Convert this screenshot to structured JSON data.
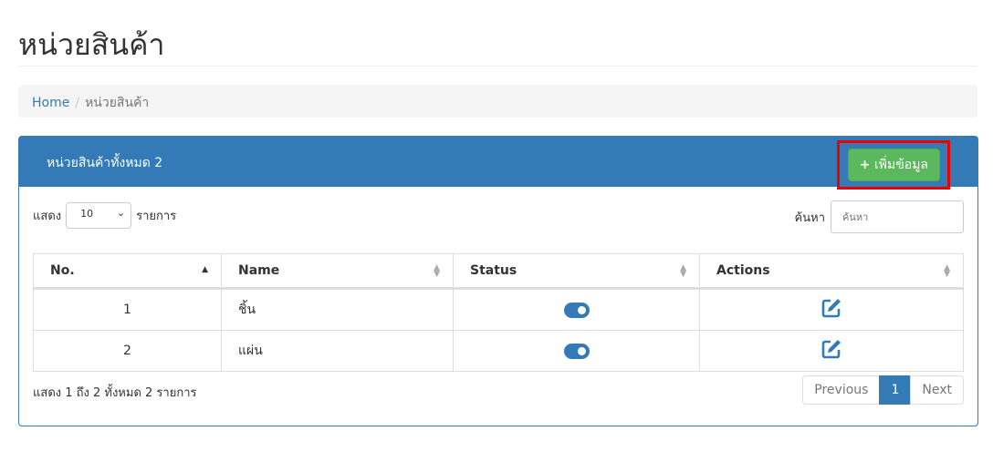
{
  "page": {
    "title": "หน่วยสินค้า"
  },
  "breadcrumb": {
    "home": "Home",
    "current": "หน่วยสินค้า"
  },
  "panel": {
    "heading": "หน่วยสินค้าทั้งหมด 2",
    "add_button": "เพิ่มข้อมูล",
    "add_icon": "plus-icon",
    "highlight_color": "#e00000",
    "accent": "#337ab7"
  },
  "length": {
    "prefix": "แสดง",
    "value": "10",
    "suffix": "รายการ"
  },
  "search": {
    "label": "ค้นหา",
    "placeholder": "ค้นหา",
    "value": ""
  },
  "table": {
    "headers": [
      "No.",
      "Name",
      "Status",
      "Actions"
    ],
    "rows": [
      {
        "no": "1",
        "name": "ชิ้น",
        "status": true
      },
      {
        "no": "2",
        "name": "แผ่น",
        "status": true
      }
    ]
  },
  "footer": {
    "info": "แสดง 1 ถึง 2 ทั้งหมด 2 รายการ",
    "previous": "Previous",
    "page": "1",
    "next": "Next"
  }
}
